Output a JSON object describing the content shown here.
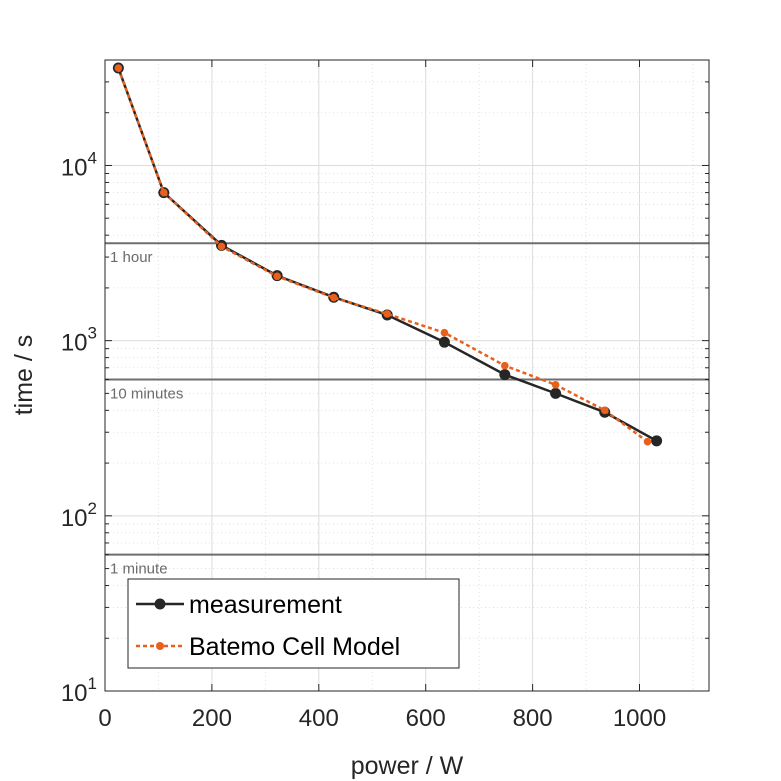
{
  "chart_data": {
    "type": "line",
    "xlabel": "power / W",
    "ylabel": "time / s",
    "xlim": [
      0,
      1130
    ],
    "ylim": [
      10,
      40000
    ],
    "yscale": "log",
    "grid": true,
    "legend_position": "bottom-left",
    "x_ticks": [
      0,
      200,
      400,
      600,
      800,
      1000
    ],
    "x_tick_labels": [
      "0",
      "200",
      "400",
      "600",
      "800",
      "1000"
    ],
    "y_ticks": [
      {
        "value": 10,
        "base": "10",
        "exp": "1"
      },
      {
        "value": 100,
        "base": "10",
        "exp": "2"
      },
      {
        "value": 1000,
        "base": "10",
        "exp": "3"
      },
      {
        "value": 10000,
        "base": "10",
        "exp": "4"
      }
    ],
    "reference_lines": [
      {
        "value": 3600,
        "label": "1 hour"
      },
      {
        "value": 600,
        "label": "10 minutes"
      },
      {
        "value": 60,
        "label": "1 minute"
      }
    ],
    "series": [
      {
        "name": "measurement",
        "color": "#262626",
        "style": "solid",
        "x": [
          25,
          110,
          218,
          322,
          428,
          528,
          635,
          748,
          843,
          935,
          1032
        ],
        "y": [
          36000,
          7000,
          3500,
          2350,
          1770,
          1400,
          980,
          640,
          500,
          390,
          268
        ]
      },
      {
        "name": "Batemo Cell Model",
        "color": "#e8601c",
        "style": "dashed",
        "x": [
          25,
          110,
          218,
          322,
          428,
          528,
          635,
          748,
          843,
          935,
          1015
        ],
        "y": [
          36000,
          7000,
          3450,
          2330,
          1760,
          1420,
          1110,
          720,
          560,
          400,
          265
        ]
      }
    ]
  }
}
